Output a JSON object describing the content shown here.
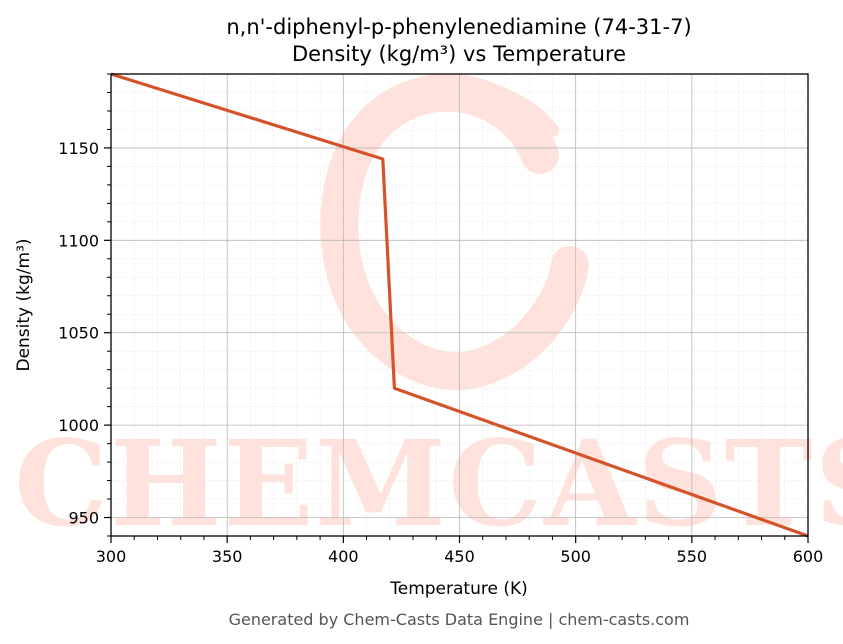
{
  "chart_data": {
    "type": "line",
    "title": "n,n'-diphenyl-p-phenylenediamine (74-31-7)",
    "subtitle": "Density (kg/m³) vs Temperature",
    "xlabel": "Temperature (K)",
    "ylabel": "Density (kg/m³)",
    "xlim": [
      300,
      600
    ],
    "ylim": [
      940,
      1190
    ],
    "x_ticks": [
      300,
      350,
      400,
      450,
      500,
      550,
      600
    ],
    "y_ticks": [
      950,
      1000,
      1050,
      1100,
      1150
    ],
    "grid": true,
    "series": [
      {
        "color": "#d4532a",
        "x": [
          300,
          417,
          422,
          600
        ],
        "y": [
          1190,
          1144,
          1020,
          940
        ]
      }
    ]
  },
  "watermark": {
    "text": "CHEMCASTS",
    "color": "#ffe2dc"
  },
  "footer": "Generated by Chem-Casts Data Engine | chem-casts.com"
}
